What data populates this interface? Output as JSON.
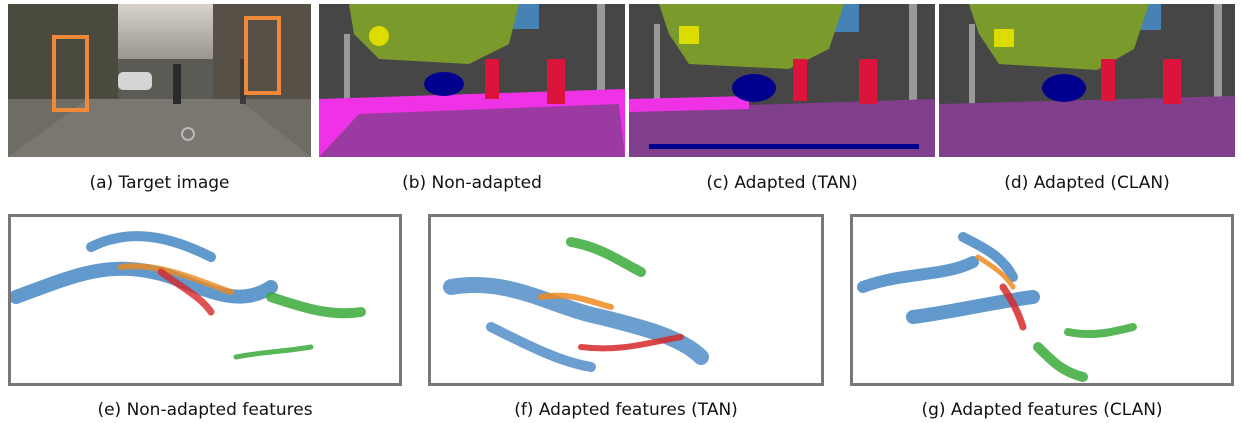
{
  "figure": {
    "top_row": [
      {
        "id": "a",
        "caption": "(a) Target image"
      },
      {
        "id": "b",
        "caption": "(b) Non-adapted"
      },
      {
        "id": "c",
        "caption": "(c) Adapted (TAN)"
      },
      {
        "id": "d",
        "caption": "(d) Adapted (CLAN)"
      }
    ],
    "bottom_row": [
      {
        "id": "e",
        "caption": "(e) Non-adapted features"
      },
      {
        "id": "f",
        "caption": "(f) Adapted features (TAN)"
      },
      {
        "id": "g",
        "caption": "(g) Adapted features (CLAN)"
      }
    ]
  },
  "colors": {
    "road": "#7f3f8a",
    "sidewalk": "#f032e6",
    "building": "#464646",
    "vegetation": "#7a9b2b",
    "sky": "#4682b4",
    "car": "#00008e",
    "person": "#dc143c",
    "pole": "#999999",
    "sign": "#dcdc00",
    "feature_blue": "#3b7fbf",
    "feature_orange": "#f08a1e",
    "feature_green": "#3aaa3a",
    "feature_red": "#d62728",
    "box_orange": "#f08a3a"
  }
}
